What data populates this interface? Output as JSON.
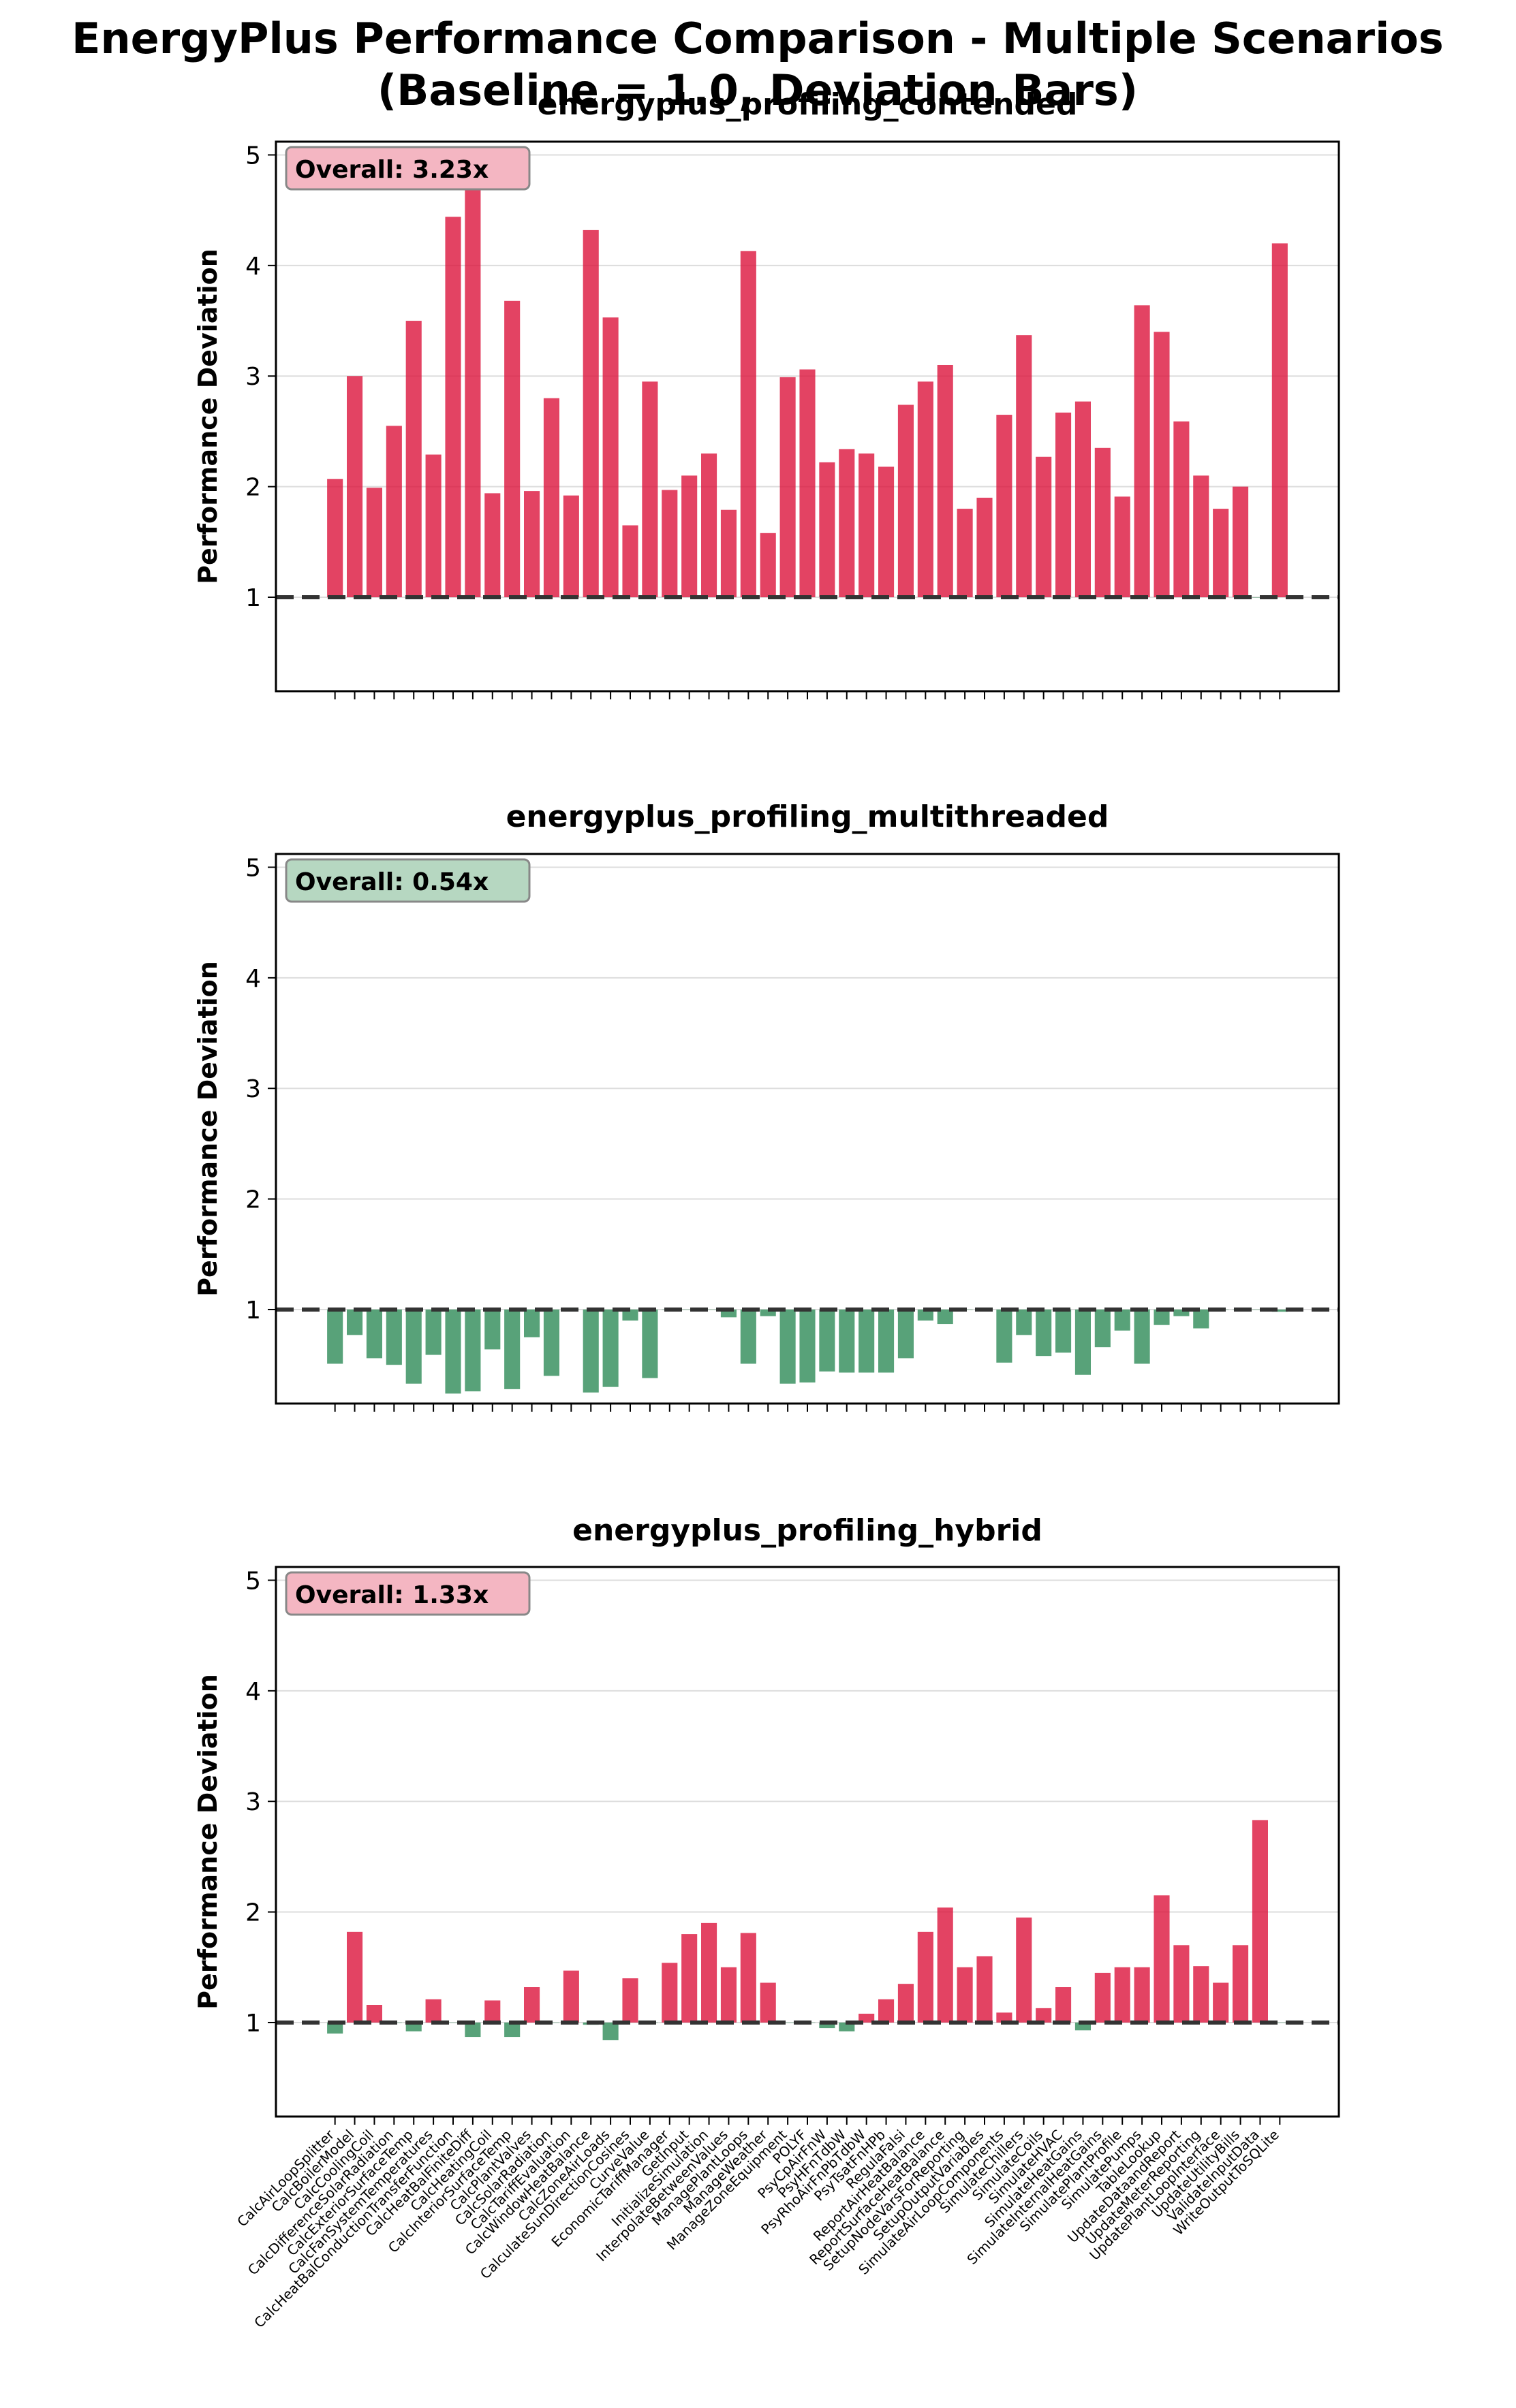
{
  "figure": {
    "title_line1": "EnergyPlus Performance Comparison - Multiple Scenarios",
    "title_line2": "(Baseline = 1.0, Deviation Bars)"
  },
  "colors": {
    "slower": "#dc143c",
    "faster": "#2e8b57",
    "baseline": "#333333",
    "grid": "#dddddd",
    "badge_slower_bg": "#f4b6c2",
    "badge_faster_bg": "#b6d7c1"
  },
  "chart_data": [
    {
      "type": "bar",
      "title": "energyplus_profiling_contended",
      "ylabel": "Performance Deviation",
      "ylim": [
        0.15,
        5.12
      ],
      "yticks": [
        1,
        2,
        3,
        4,
        5
      ],
      "baseline": 1.0,
      "overall_label": "Overall: 3.23x",
      "badge_kind": "slower",
      "show_xticklabels": false,
      "grid": "horizontal",
      "categories": [
        "CalcAirLoopSplitter",
        "CalcBoilerModel",
        "CalcCoolingCoil",
        "CalcDifferenceSolarRadiation",
        "CalcExteriorSurfaceTemp",
        "CalcFanSystemTemperatures",
        "CalcHeatBalConductionTransferFunction",
        "CalcHeatBalFiniteDiff",
        "CalcHeatingCoil",
        "CalcInteriorSurfaceTemp",
        "CalcPlantValves",
        "CalcSolarRadiation",
        "CalcTariffEvaluation",
        "CalcWindowHeatBalance",
        "CalcZoneAirLoads",
        "CalculateSunDirectionCosines",
        "CurveValue",
        "EconomicTariffManager",
        "GetInput",
        "InitializeSimulation",
        "InterpolateBetweenValues",
        "ManagePlantLoops",
        "ManageWeather",
        "ManageZoneEquipment",
        "POLYF",
        "PsyCpAirFnW",
        "PsyHFnTdbW",
        "PsyRhoAirFnPbTdbW",
        "PsyTsatFnHPb",
        "RegulaFalsi",
        "ReportAirHeatBalance",
        "ReportSurfaceHeatBalance",
        "SetupNodeVarsForReporting",
        "SetupOutputVariables",
        "SimulateAirLoopComponents",
        "SimulateChillers",
        "SimulateCoils",
        "SimulateHVAC",
        "SimulateHeatGains",
        "SimulateInternalHeatGains",
        "SimulatePlantProfile",
        "SimulatePumps",
        "TableLookup",
        "UpdateDataandReport",
        "UpdateMeterReporting",
        "UpdatePlantLoopInterface",
        "UpdateUtilityBills",
        "ValidateInputData",
        "WriteOutputToSQLite"
      ],
      "values": [
        2.07,
        3.0,
        1.99,
        2.55,
        3.5,
        2.29,
        4.44,
        4.78,
        1.94,
        3.68,
        1.96,
        2.8,
        1.92,
        4.32,
        3.53,
        1.65,
        2.95,
        1.97,
        2.1,
        2.3,
        1.79,
        4.13,
        1.58,
        2.99,
        3.06,
        2.22,
        2.34,
        2.3,
        2.18,
        2.74,
        2.95,
        3.1,
        1.8,
        1.9,
        2.65,
        3.37,
        2.27,
        2.67,
        2.77,
        2.35,
        1.91,
        3.64,
        3.4,
        2.59,
        2.1,
        1.8,
        2.0,
        1.0,
        4.2
      ]
    },
    {
      "type": "bar",
      "title": "energyplus_profiling_multithreaded",
      "ylabel": "Performance Deviation",
      "ylim": [
        0.15,
        5.12
      ],
      "yticks": [
        1,
        2,
        3,
        4,
        5
      ],
      "baseline": 1.0,
      "overall_label": "Overall: 0.54x",
      "badge_kind": "faster",
      "show_xticklabels": false,
      "grid": "horizontal",
      "categories": [
        "CalcAirLoopSplitter",
        "CalcBoilerModel",
        "CalcCoolingCoil",
        "CalcDifferenceSolarRadiation",
        "CalcExteriorSurfaceTemp",
        "CalcFanSystemTemperatures",
        "CalcHeatBalConductionTransferFunction",
        "CalcHeatBalFiniteDiff",
        "CalcHeatingCoil",
        "CalcInteriorSurfaceTemp",
        "CalcPlantValves",
        "CalcSolarRadiation",
        "CalcTariffEvaluation",
        "CalcWindowHeatBalance",
        "CalcZoneAirLoads",
        "CalculateSunDirectionCosines",
        "CurveValue",
        "EconomicTariffManager",
        "GetInput",
        "InitializeSimulation",
        "InterpolateBetweenValues",
        "ManagePlantLoops",
        "ManageWeather",
        "ManageZoneEquipment",
        "POLYF",
        "PsyCpAirFnW",
        "PsyHFnTdbW",
        "PsyRhoAirFnPbTdbW",
        "PsyTsatFnHPb",
        "RegulaFalsi",
        "ReportAirHeatBalance",
        "ReportSurfaceHeatBalance",
        "SetupNodeVarsForReporting",
        "SetupOutputVariables",
        "SimulateAirLoopComponents",
        "SimulateChillers",
        "SimulateCoils",
        "SimulateHVAC",
        "SimulateHeatGains",
        "SimulateInternalHeatGains",
        "SimulatePlantProfile",
        "SimulatePumps",
        "TableLookup",
        "UpdateDataandReport",
        "UpdateMeterReporting",
        "UpdatePlantLoopInterface",
        "UpdateUtilityBills",
        "ValidateInputData",
        "WriteOutputToSQLite"
      ],
      "values": [
        0.51,
        0.77,
        0.56,
        0.5,
        0.33,
        0.59,
        0.24,
        0.26,
        0.64,
        0.28,
        0.75,
        0.4,
        1.0,
        0.25,
        0.3,
        0.9,
        0.38,
        1.0,
        1.0,
        1.0,
        0.93,
        0.51,
        0.94,
        0.33,
        0.34,
        0.44,
        0.43,
        0.43,
        0.43,
        0.56,
        0.9,
        0.87,
        1.0,
        1.0,
        0.52,
        0.77,
        0.58,
        0.61,
        0.41,
        0.66,
        0.81,
        0.51,
        0.86,
        0.94,
        0.83,
        1.0,
        1.0,
        1.0,
        0.98
      ]
    },
    {
      "type": "bar",
      "title": "energyplus_profiling_hybrid",
      "ylabel": "Performance Deviation",
      "ylim": [
        0.15,
        5.12
      ],
      "yticks": [
        1,
        2,
        3,
        4,
        5
      ],
      "baseline": 1.0,
      "overall_label": "Overall: 1.33x",
      "badge_kind": "slower",
      "show_xticklabels": true,
      "grid": "horizontal",
      "categories": [
        "CalcAirLoopSplitter",
        "CalcBoilerModel",
        "CalcCoolingCoil",
        "CalcDifferenceSolarRadiation",
        "CalcExteriorSurfaceTemp",
        "CalcFanSystemTemperatures",
        "CalcHeatBalConductionTransferFunction",
        "CalcHeatBalFiniteDiff",
        "CalcHeatingCoil",
        "CalcInteriorSurfaceTemp",
        "CalcPlantValves",
        "CalcSolarRadiation",
        "CalcTariffEvaluation",
        "CalcWindowHeatBalance",
        "CalcZoneAirLoads",
        "CalculateSunDirectionCosines",
        "CurveValue",
        "EconomicTariffManager",
        "GetInput",
        "InitializeSimulation",
        "InterpolateBetweenValues",
        "ManagePlantLoops",
        "ManageWeather",
        "ManageZoneEquipment",
        "POLYF",
        "PsyCpAirFnW",
        "PsyHFnTdbW",
        "PsyRhoAirFnPbTdbW",
        "PsyTsatFnHPb",
        "RegulaFalsi",
        "ReportAirHeatBalance",
        "ReportSurfaceHeatBalance",
        "SetupNodeVarsForReporting",
        "SetupOutputVariables",
        "SimulateAirLoopComponents",
        "SimulateChillers",
        "SimulateCoils",
        "SimulateHVAC",
        "SimulateHeatGains",
        "SimulateInternalHeatGains",
        "SimulatePlantProfile",
        "SimulatePumps",
        "TableLookup",
        "UpdateDataandReport",
        "UpdateMeterReporting",
        "UpdatePlantLoopInterface",
        "UpdateUtilityBills",
        "ValidateInputData",
        "WriteOutputToSQLite"
      ],
      "values": [
        0.9,
        1.82,
        1.16,
        1.0,
        0.92,
        1.21,
        1.0,
        0.87,
        1.2,
        0.87,
        1.32,
        1.0,
        1.47,
        0.98,
        0.84,
        1.4,
        1.0,
        1.54,
        1.8,
        1.9,
        1.5,
        1.81,
        1.36,
        1.0,
        1.0,
        0.95,
        0.92,
        1.08,
        1.21,
        1.35,
        1.82,
        2.04,
        1.5,
        1.6,
        1.09,
        1.95,
        1.13,
        1.32,
        0.93,
        1.45,
        1.5,
        1.5,
        2.15,
        1.7,
        1.51,
        1.36,
        1.7,
        2.83,
        1.0
      ]
    }
  ]
}
